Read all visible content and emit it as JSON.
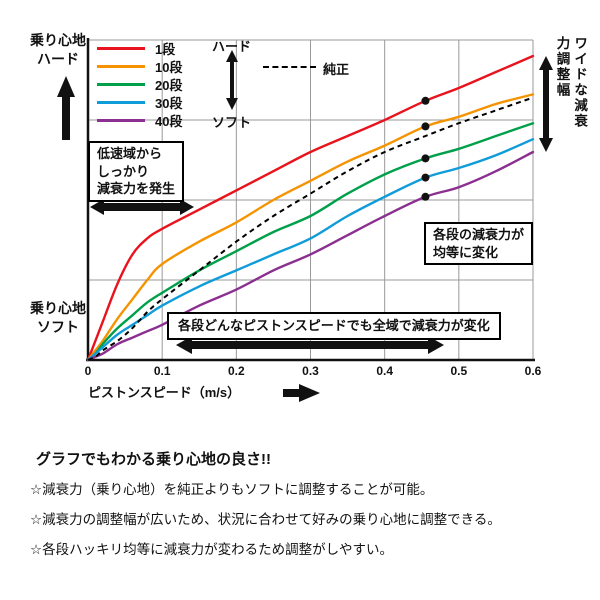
{
  "chart_data": {
    "type": "line",
    "title": "",
    "xlabel": "ピストンスピード（m/s）",
    "ylabel_top": "乗り心地\nハード",
    "ylabel_bottom": "乗り心地\nソフト",
    "xlim": [
      0,
      0.6
    ],
    "ylim": [
      0,
      100
    ],
    "grid": "on",
    "legend_position": "top-left",
    "x_ticks": [
      0,
      0.1,
      0.2,
      0.3,
      0.4,
      0.5,
      0.6
    ],
    "x_tick_labels": [
      "0",
      "0.1",
      "0.2",
      "0.3",
      "0.4",
      "0.5",
      "0.6"
    ],
    "grid_x": [
      0.1,
      0.2,
      0.3,
      0.4,
      0.5,
      0.6
    ],
    "grid_y": [
      25,
      50,
      75,
      100
    ],
    "x": [
      0,
      0.01,
      0.02,
      0.04,
      0.06,
      0.08,
      0.1,
      0.15,
      0.2,
      0.25,
      0.3,
      0.35,
      0.4,
      0.455,
      0.5,
      0.55,
      0.6
    ],
    "series": [
      {
        "name": "1段",
        "color": "#e8131d",
        "values": [
          0,
          6,
          12,
          24,
          33,
          38,
          41,
          47,
          53,
          59,
          65,
          70,
          75,
          81,
          85,
          90,
          95
        ]
      },
      {
        "name": "10段",
        "color": "#f59300",
        "values": [
          0,
          3,
          6,
          13,
          19,
          25,
          30,
          37,
          43,
          50,
          56,
          62,
          67,
          73,
          76,
          80,
          83
        ]
      },
      {
        "name": "20段",
        "color": "#00a04a",
        "values": [
          0,
          2,
          5,
          10,
          14,
          18,
          21,
          28,
          34,
          40,
          45,
          52,
          58,
          63,
          66,
          70,
          74
        ]
      },
      {
        "name": "30段",
        "color": "#0f9cd8",
        "values": [
          0,
          2,
          4,
          8,
          11,
          14,
          17,
          23,
          28,
          33,
          38,
          45,
          51,
          57,
          60,
          64,
          69
        ]
      },
      {
        "name": "40段",
        "color": "#8b2f90",
        "values": [
          0,
          1,
          2,
          5,
          7,
          9,
          11,
          17,
          22,
          28,
          33,
          39,
          45,
          51,
          54,
          59,
          65
        ]
      }
    ],
    "reference": {
      "name": "純正",
      "style": "dashed",
      "color": "#000000",
      "values": [
        0,
        1,
        3,
        6,
        10,
        15,
        19,
        28,
        37,
        45,
        52,
        59,
        65,
        70,
        74,
        78,
        82
      ]
    },
    "dots": {
      "x": 0.455,
      "series_values": [
        81,
        73,
        63,
        57,
        51
      ]
    }
  },
  "labels": {
    "legend_hard": "ハード",
    "legend_soft": "ソフト"
  },
  "annotations": {
    "low_speed": "低速域から\nしっかり\n減衰力を発生",
    "equal_change": "各段の減衰力が\n均等に変化",
    "full_range": "各段どんなピストンスピードでも全域で減衰力が変化",
    "wide_range": "ワイドな減衰力調整幅"
  },
  "footer": {
    "heading": "グラフでもわかる乗り心地の良さ!!",
    "bullets": [
      "☆減衰力（乗り心地）を純正よりもソフトに調整することが可能。",
      "☆減衰力の調整幅が広いため、状況に合わせて好みの乗り心地に調整できる。",
      "☆各段ハッキリ均等に減衰力が変わるため調整がしやすい。"
    ]
  }
}
